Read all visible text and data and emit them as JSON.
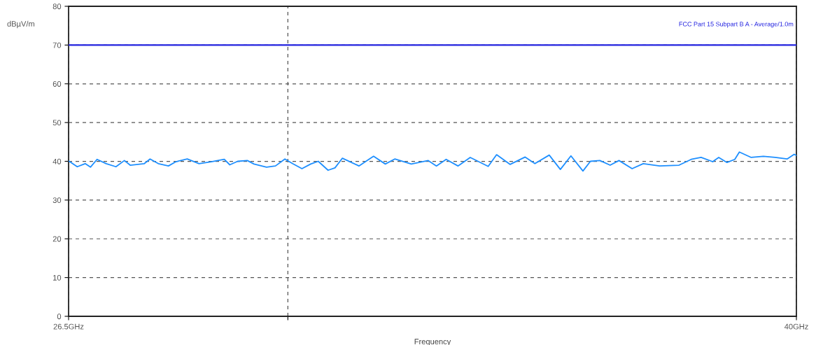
{
  "chart_data": {
    "type": "line",
    "ylabel": "dBµV/m",
    "xlabel": "Frequency",
    "log": "x",
    "xlim": [
      26.5,
      40
    ],
    "xticks": [
      {
        "value": 26.5,
        "label": "26.5GHz"
      },
      {
        "value": 30,
        "label": null
      },
      {
        "value": 40,
        "label": "40GHz"
      }
    ],
    "ylim": [
      0,
      80
    ],
    "yticks": [
      0,
      10,
      20,
      30,
      40,
      50,
      60,
      70,
      80
    ],
    "grid": true,
    "legend": false,
    "marker": "none",
    "line_style": "solid",
    "ref_lines": [
      {
        "axis": "y",
        "value": 70,
        "label": "FCC Part 15 Subpart B A - Average/1.0m",
        "color": "#2424e0",
        "line_style": "solid"
      }
    ],
    "series": [
      {
        "color": "#1e8fff",
        "x": [
          26.51,
          26.63,
          26.75,
          26.83,
          26.93,
          27.07,
          27.22,
          27.35,
          27.44,
          27.66,
          27.75,
          27.88,
          28.04,
          28.16,
          28.34,
          28.53,
          28.73,
          28.94,
          29.03,
          29.16,
          29.32,
          29.43,
          29.64,
          29.79,
          29.95,
          30.08,
          30.24,
          30.39,
          30.52,
          30.69,
          30.81,
          30.94,
          31.23,
          31.49,
          31.7,
          31.87,
          32.17,
          32.48,
          32.63,
          32.81,
          33.03,
          33.26,
          33.6,
          33.76,
          34.02,
          34.31,
          34.5,
          34.78,
          35.0,
          35.21,
          35.45,
          35.6,
          35.79,
          36.0,
          36.18,
          36.45,
          36.68,
          37.02,
          37.43,
          37.69,
          37.9,
          38.15,
          38.28,
          38.46,
          38.63,
          38.73,
          38.99,
          39.26,
          39.52,
          39.79,
          39.95,
          40.0
        ],
        "values": [
          40.0,
          38.6,
          39.4,
          38.5,
          40.5,
          39.4,
          38.6,
          40.2,
          39.0,
          39.4,
          40.6,
          39.4,
          38.8,
          39.9,
          40.6,
          39.4,
          39.9,
          40.5,
          39.1,
          40.0,
          40.2,
          39.3,
          38.5,
          38.8,
          40.6,
          39.4,
          38.1,
          39.3,
          40.0,
          37.7,
          38.3,
          40.8,
          38.8,
          41.3,
          39.3,
          40.6,
          39.3,
          40.2,
          38.8,
          40.5,
          38.8,
          41.0,
          38.7,
          41.7,
          39.2,
          41.1,
          39.4,
          41.6,
          37.9,
          41.4,
          37.5,
          40.0,
          40.2,
          39.0,
          40.2,
          38.1,
          39.4,
          38.8,
          39.0,
          40.5,
          41.0,
          39.9,
          41.0,
          39.7,
          40.5,
          42.4,
          41.0,
          41.3,
          41.0,
          40.6,
          41.8,
          41.5
        ]
      }
    ]
  }
}
